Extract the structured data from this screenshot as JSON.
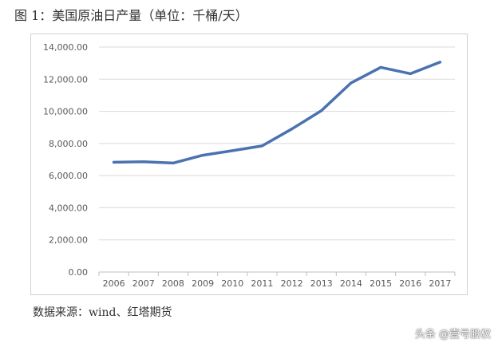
{
  "figure_title": "图 1：美国原油日产量（单位：千桶/天）",
  "source_note": "数据来源：wind、红塔期货",
  "watermark": "头条 @壹号股权",
  "colors": {
    "line": "#4a72b0",
    "grid": "#d9d9d9",
    "axis_text": "#595959"
  },
  "chart_data": {
    "type": "line",
    "title": "",
    "xlabel": "",
    "ylabel": "",
    "categories": [
      "2006",
      "2007",
      "2008",
      "2009",
      "2010",
      "2011",
      "2012",
      "2013",
      "2014",
      "2015",
      "2016",
      "2017"
    ],
    "series": [
      {
        "values": [
          6830,
          6860,
          6780,
          7270,
          7550,
          7850,
          8900,
          10050,
          11770,
          12740,
          12340,
          13060
        ]
      }
    ],
    "ylim": [
      0,
      14000
    ],
    "yticks": [
      0,
      2000,
      4000,
      6000,
      8000,
      10000,
      12000,
      14000
    ],
    "ytick_labels": [
      "0.00",
      "2,000.00",
      "4,000.00",
      "6,000.00",
      "8,000.00",
      "10,000.00",
      "12,000.00",
      "14,000.00"
    ],
    "grid": "horizontal",
    "legend": "none"
  }
}
